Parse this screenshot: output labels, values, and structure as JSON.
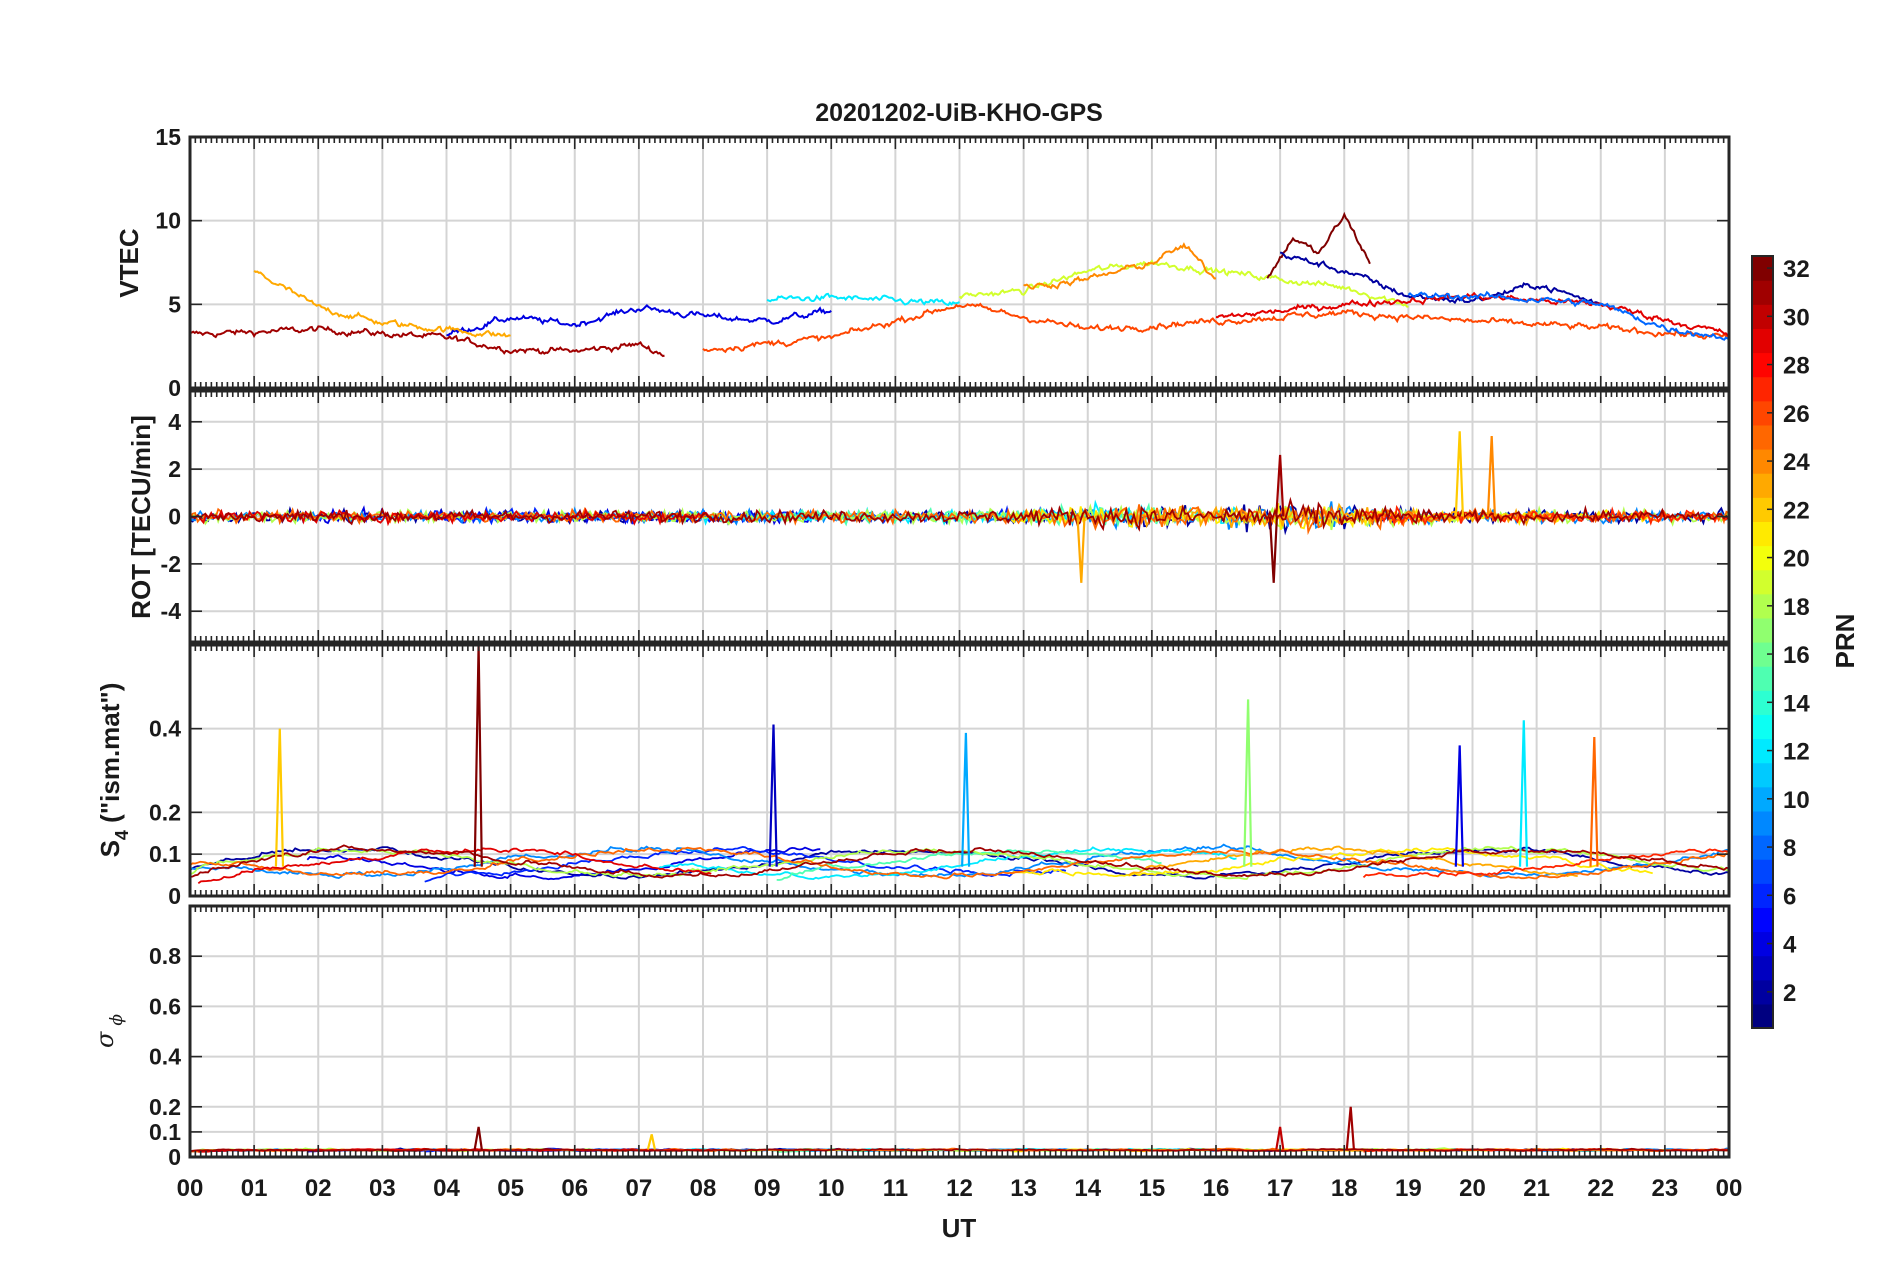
{
  "title": "20201202-UiB-KHO-GPS",
  "x_axis": {
    "label": "UT",
    "tick_labels": [
      "00",
      "01",
      "02",
      "03",
      "04",
      "05",
      "06",
      "07",
      "08",
      "09",
      "10",
      "11",
      "12",
      "13",
      "14",
      "15",
      "16",
      "17",
      "18",
      "19",
      "20",
      "21",
      "22",
      "23",
      "00"
    ]
  },
  "colorbar": {
    "label": "PRN",
    "range": [
      1,
      32
    ],
    "tick_labels": [
      "2",
      "4",
      "6",
      "8",
      "10",
      "12",
      "14",
      "16",
      "18",
      "20",
      "22",
      "24",
      "26",
      "28",
      "30",
      "32"
    ],
    "colormap": "jet"
  },
  "panels": {
    "vtec": {
      "ylabel": "VTEC",
      "tick_labels": [
        "0",
        "5",
        "10",
        "15"
      ]
    },
    "rot": {
      "ylabel": "ROT [TECU/min]",
      "tick_labels": [
        "-4",
        "-2",
        "0",
        "2",
        "4"
      ]
    },
    "s4": {
      "ylabel_main": "S",
      "ylabel_sub": "4",
      "ylabel_rest": " (\"ism.mat\")",
      "tick_labels": [
        "0",
        "0.1",
        "0.2",
        "0.4"
      ]
    },
    "sigma": {
      "ylabel_sigma": "σ",
      "ylabel_phi": "ϕ",
      "tick_labels": [
        "0",
        "0.1",
        "0.2",
        "0.4",
        "0.6",
        "0.8"
      ]
    }
  },
  "chart_data": [
    {
      "type": "line",
      "panel": "VTEC",
      "ylabel": "VTEC",
      "ylim": [
        0,
        15
      ],
      "yticks": [
        0,
        5,
        10,
        15
      ],
      "x_unit": "UT hour",
      "xlim": [
        0,
        24
      ],
      "grid": true,
      "series": [
        {
          "prn": 31,
          "x": [
            0,
            2,
            4,
            5,
            6,
            7,
            7.4
          ],
          "y": [
            3.2,
            3.5,
            3.0,
            2.3,
            2.2,
            2.6,
            2.0
          ]
        },
        {
          "prn": 4,
          "x": [
            4,
            5,
            6,
            7,
            8,
            9,
            10
          ],
          "y": [
            3.2,
            4.2,
            3.8,
            4.8,
            4.3,
            4.0,
            4.6
          ]
        },
        {
          "prn": 12,
          "x": [
            9,
            10,
            11,
            12
          ],
          "y": [
            5.3,
            5.4,
            5.2,
            5.0
          ]
        },
        {
          "prn": 23,
          "x": [
            1,
            2,
            3,
            4,
            5
          ],
          "y": [
            7.0,
            4.8,
            3.9,
            3.5,
            3.1
          ]
        },
        {
          "prn": 19,
          "x": [
            12,
            13,
            14,
            15,
            16,
            17,
            18,
            19
          ],
          "y": [
            5.5,
            5.8,
            7.0,
            7.5,
            7.0,
            6.5,
            6.0,
            5.0
          ]
        },
        {
          "prn": 32,
          "x": [
            16.8,
            17.2,
            17.6,
            18.0,
            18.4
          ],
          "y": [
            6.5,
            9.0,
            8.0,
            10.3,
            7.5
          ]
        },
        {
          "prn": 2,
          "x": [
            17,
            18,
            19,
            20,
            21,
            22
          ],
          "y": [
            8.0,
            7.0,
            5.5,
            5.2,
            6.2,
            5.0
          ]
        },
        {
          "prn": 26,
          "x": [
            8,
            10,
            12,
            14,
            16,
            18,
            20,
            22,
            24
          ],
          "y": [
            2.3,
            3.0,
            5.0,
            3.5,
            4.0,
            4.5,
            4.0,
            3.6,
            3.0
          ]
        },
        {
          "prn": 29,
          "x": [
            16,
            18,
            20,
            22,
            24
          ],
          "y": [
            4.2,
            5.0,
            5.5,
            5.0,
            3.2
          ]
        },
        {
          "prn": 8,
          "x": [
            19,
            20,
            21,
            22,
            23,
            24
          ],
          "y": [
            5.5,
            5.5,
            5.3,
            5.0,
            3.6,
            3.0
          ]
        },
        {
          "prn": 24,
          "x": [
            13,
            14,
            15,
            15.5,
            16
          ],
          "y": [
            6.0,
            6.5,
            7.5,
            8.5,
            6.5
          ]
        }
      ]
    },
    {
      "type": "line",
      "panel": "ROT",
      "ylabel": "ROT [TECU/min]",
      "ylim": [
        -5.3,
        5.3
      ],
      "yticks": [
        -4,
        -2,
        0,
        2,
        4
      ],
      "x_unit": "UT hour",
      "xlim": [
        0,
        24
      ],
      "grid": true,
      "peaks": [
        {
          "prn": 22,
          "x": 19.8,
          "y": 3.6
        },
        {
          "prn": 24,
          "x": 20.3,
          "y": 3.4
        },
        {
          "prn": 23,
          "x": 13.9,
          "y": -2.8
        },
        {
          "prn": 32,
          "x": 16.9,
          "y": -2.8
        },
        {
          "prn": 31,
          "x": 17.0,
          "y": 2.6
        }
      ]
    },
    {
      "type": "line",
      "panel": "S4",
      "ylabel": "S4 (\"ism.mat\")",
      "ylim": [
        0,
        0.6
      ],
      "yticks": [
        0,
        0.1,
        0.2,
        0.4
      ],
      "x_unit": "UT hour",
      "xlim": [
        0,
        24
      ],
      "grid": true,
      "peaks": [
        {
          "prn": 32,
          "x": 4.5,
          "y": 0.6
        },
        {
          "prn": 22,
          "x": 1.4,
          "y": 0.4
        },
        {
          "prn": 3,
          "x": 9.1,
          "y": 0.41
        },
        {
          "prn": 12,
          "x": 20.8,
          "y": 0.42
        },
        {
          "prn": 17,
          "x": 16.5,
          "y": 0.47
        },
        {
          "prn": 10,
          "x": 12.1,
          "y": 0.39
        },
        {
          "prn": 25,
          "x": 21.9,
          "y": 0.38
        },
        {
          "prn": 4,
          "x": 19.8,
          "y": 0.36
        }
      ]
    },
    {
      "type": "line",
      "panel": "sigma_phi",
      "ylabel": "σϕ",
      "ylim": [
        0,
        1.0
      ],
      "yticks": [
        0,
        0.1,
        0.2,
        0.4,
        0.6,
        0.8
      ],
      "x_unit": "UT hour",
      "xlim": [
        0,
        24
      ],
      "grid": true,
      "peaks": [
        {
          "prn": 31,
          "x": 18.1,
          "y": 0.2
        },
        {
          "prn": 32,
          "x": 4.5,
          "y": 0.12
        },
        {
          "prn": 30,
          "x": 17.0,
          "y": 0.12
        },
        {
          "prn": 22,
          "x": 7.2,
          "y": 0.09
        }
      ]
    }
  ]
}
